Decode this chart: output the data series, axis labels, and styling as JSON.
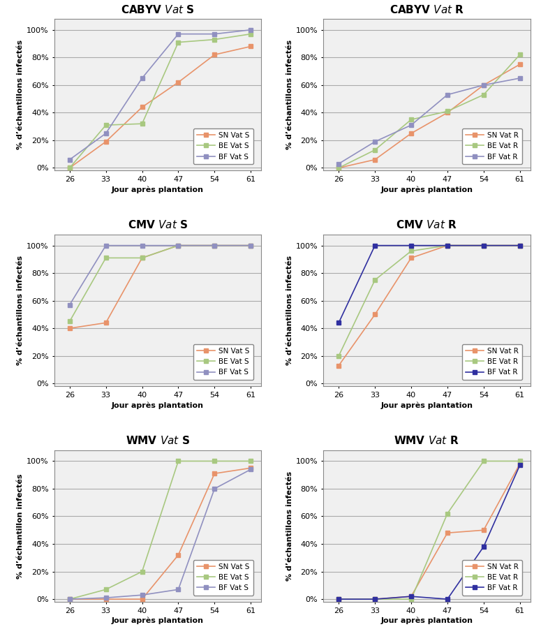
{
  "x": [
    26,
    33,
    40,
    47,
    54,
    61
  ],
  "panels": [
    {
      "title": "CABYV $\\mathbf{\\mathit{Vat}}$ S",
      "ylabel": "% d’échantillons infectés",
      "series": [
        {
          "label": "SN Vat S",
          "values": [
            0.0,
            0.19,
            0.44,
            0.62,
            0.82,
            0.88
          ],
          "color": "#E8936A"
        },
        {
          "label": "BE Vat S",
          "values": [
            0.0,
            0.31,
            0.32,
            0.91,
            0.93,
            0.97
          ],
          "color": "#A8C880"
        },
        {
          "label": "BF Vat S",
          "values": [
            0.06,
            0.25,
            0.65,
            0.97,
            0.97,
            1.0
          ],
          "color": "#9090C0"
        }
      ]
    },
    {
      "title": "CABYV $\\mathbf{\\mathit{Vat}}$ R",
      "ylabel": "% d’échantillons infectés",
      "series": [
        {
          "label": "SN Vat R",
          "values": [
            0.0,
            0.06,
            0.25,
            0.4,
            0.6,
            0.75
          ],
          "color": "#E8936A"
        },
        {
          "label": "BE Vat R",
          "values": [
            0.0,
            0.13,
            0.35,
            0.41,
            0.53,
            0.82
          ],
          "color": "#A8C880"
        },
        {
          "label": "BF Vat R",
          "values": [
            0.03,
            0.19,
            0.31,
            0.53,
            0.6,
            0.65
          ],
          "color": "#9090C0"
        }
      ]
    },
    {
      "title": "CMV $\\mathbf{\\mathit{Vat}}$ S",
      "ylabel": "% d’échantillons infectés",
      "series": [
        {
          "label": "SN Vat S",
          "values": [
            0.4,
            0.44,
            0.91,
            1.0,
            1.0,
            1.0
          ],
          "color": "#E8936A"
        },
        {
          "label": "BE Vat S",
          "values": [
            0.45,
            0.91,
            0.91,
            1.0,
            1.0,
            1.0
          ],
          "color": "#A8C880"
        },
        {
          "label": "BF Vat S",
          "values": [
            0.57,
            1.0,
            1.0,
            1.0,
            1.0,
            1.0
          ],
          "color": "#9090C0"
        }
      ]
    },
    {
      "title": "CMV $\\mathbf{\\mathit{Vat}}$ R",
      "ylabel": "% d’échantillons infectés",
      "series": [
        {
          "label": "SN Vat R",
          "values": [
            0.13,
            0.5,
            0.91,
            1.0,
            1.0,
            1.0
          ],
          "color": "#E8936A"
        },
        {
          "label": "BE Vat R",
          "values": [
            0.2,
            0.75,
            0.96,
            1.0,
            1.0,
            1.0
          ],
          "color": "#A8C880"
        },
        {
          "label": "BF Vat R",
          "values": [
            0.44,
            1.0,
            1.0,
            1.0,
            1.0,
            1.0
          ],
          "color": "#3030A0"
        }
      ]
    },
    {
      "title": "WMV $\\mathbf{\\mathit{Vat}}$ S",
      "ylabel": "% d’échantillon infectés",
      "series": [
        {
          "label": "SN Vat S",
          "values": [
            0.0,
            0.0,
            0.0,
            0.32,
            0.91,
            0.95
          ],
          "color": "#E8936A"
        },
        {
          "label": "BE Vat S",
          "values": [
            0.0,
            0.07,
            0.2,
            1.0,
            1.0,
            1.0
          ],
          "color": "#A8C880"
        },
        {
          "label": "BF Vat S",
          "values": [
            0.0,
            0.01,
            0.03,
            0.07,
            0.8,
            0.94
          ],
          "color": "#9090C0"
        }
      ]
    },
    {
      "title": "WMV $\\mathbf{\\mathit{Vat}}$ R",
      "ylabel": "% d’échantillons infectés",
      "series": [
        {
          "label": "SN Vat R",
          "values": [
            0.0,
            0.0,
            0.02,
            0.48,
            0.5,
            0.98
          ],
          "color": "#E8936A"
        },
        {
          "label": "BE Vat R",
          "values": [
            0.0,
            0.0,
            0.0,
            0.62,
            1.0,
            1.0
          ],
          "color": "#A8C880"
        },
        {
          "label": "BF Vat R",
          "values": [
            0.0,
            0.0,
            0.02,
            0.0,
            0.38,
            0.97
          ],
          "color": "#3030A0"
        }
      ]
    }
  ],
  "xlabel": "Jour après plantation",
  "yticks": [
    0.0,
    0.2,
    0.4,
    0.6,
    0.8,
    1.0
  ],
  "ytick_labels": [
    "0%",
    "20%",
    "40%",
    "60%",
    "80%",
    "100%"
  ],
  "background_color": "#FFFFFF",
  "plot_bg_color": "#F0F0F0",
  "grid_color": "#AAAAAA",
  "marker": "s",
  "markersize": 5,
  "linewidth": 1.2
}
